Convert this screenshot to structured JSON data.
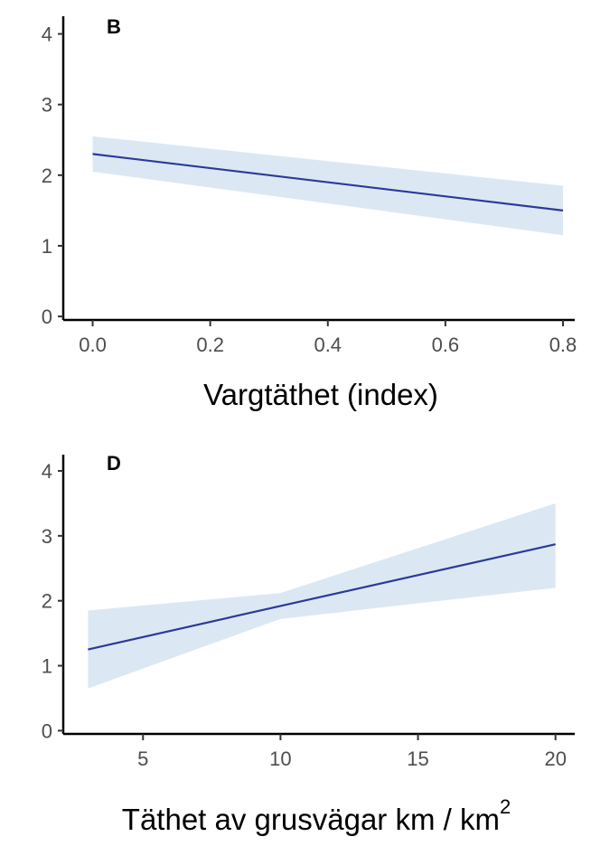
{
  "chart_data": [
    {
      "type": "line",
      "panel_label": "B",
      "xlabel": "Vargtäthet (index)",
      "xlabel_sup": "",
      "xlim": [
        -0.05,
        0.82
      ],
      "ylim": [
        -0.05,
        4.25
      ],
      "xticks": [
        0.0,
        0.2,
        0.4,
        0.6,
        0.8
      ],
      "xtick_labels": [
        "0.0",
        "0.2",
        "0.4",
        "0.6",
        "0.8"
      ],
      "yticks": [
        0,
        1,
        2,
        3,
        4
      ],
      "ytick_labels": [
        "0",
        "1",
        "2",
        "3",
        "4"
      ],
      "grid": false,
      "series": [
        {
          "x": [
            0.0,
            0.8
          ],
          "y": [
            2.3,
            1.5
          ],
          "lower": [
            2.05,
            1.15
          ],
          "upper": [
            2.55,
            1.85
          ]
        }
      ],
      "line_color": "#2b3a99",
      "band_color": "#dbe8f3"
    },
    {
      "type": "line",
      "panel_label": "D",
      "xlabel": "Täthet av grusvägar km / km",
      "xlabel_sup": "2",
      "xlim": [
        2.1,
        20.7
      ],
      "ylim": [
        -0.05,
        4.25
      ],
      "xticks": [
        5,
        10,
        15,
        20
      ],
      "xtick_labels": [
        "5",
        "10",
        "15",
        "20"
      ],
      "yticks": [
        0,
        1,
        2,
        3,
        4
      ],
      "ytick_labels": [
        "0",
        "1",
        "2",
        "3",
        "4"
      ],
      "grid": false,
      "series": [
        {
          "x": [
            3,
            10,
            20
          ],
          "y": [
            1.25,
            1.92,
            2.87
          ],
          "lower": [
            0.65,
            1.72,
            2.2
          ],
          "upper": [
            1.85,
            2.12,
            3.5
          ]
        }
      ],
      "line_color": "#2b3a99",
      "band_color": "#dbe8f3"
    }
  ]
}
